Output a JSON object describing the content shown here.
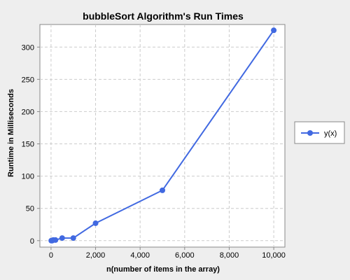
{
  "chart_data": {
    "type": "line",
    "title": "bubbleSort Algorithm's Run Times",
    "xlabel": "n(number of items in the array)",
    "ylabel": "Runtime in Milliseconds",
    "xlim": [
      -500,
      10500
    ],
    "ylim": [
      -10,
      335
    ],
    "xticks": [
      0,
      2000,
      4000,
      6000,
      8000,
      10000
    ],
    "xtick_labels": [
      "0",
      "2,000",
      "4,000",
      "6,000",
      "8,000",
      "10,000"
    ],
    "yticks": [
      0,
      50,
      100,
      150,
      200,
      250,
      300
    ],
    "ytick_labels": [
      "0",
      "50",
      "100",
      "150",
      "200",
      "250",
      "300"
    ],
    "grid": true,
    "legend_position": "right",
    "series": [
      {
        "name": "y(x)",
        "color": "#4169e1",
        "x": [
          10,
          50,
          100,
          200,
          500,
          1000,
          2000,
          5000,
          10000
        ],
        "y": [
          0,
          0,
          1,
          1,
          4,
          4,
          27,
          78,
          326
        ]
      }
    ]
  }
}
